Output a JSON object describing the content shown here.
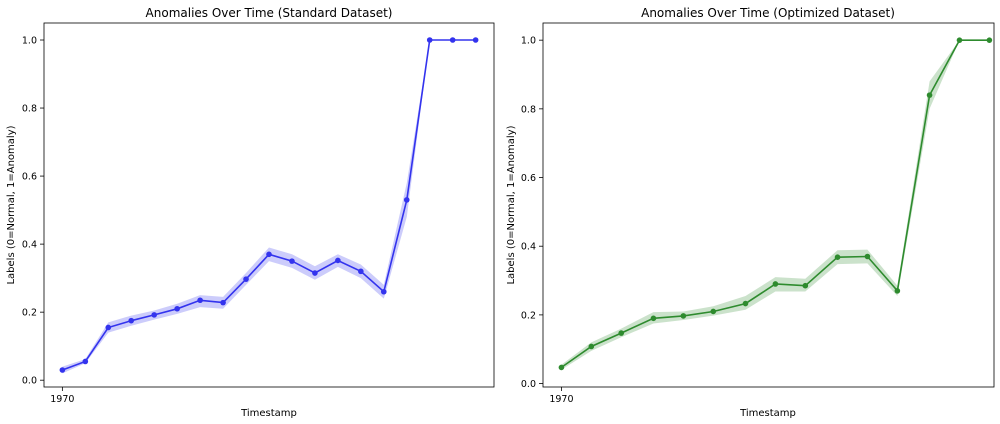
{
  "chart_data": [
    {
      "type": "line",
      "title": "Anomalies Over Time (Standard Dataset)",
      "xlabel": "Timestamp",
      "ylabel": "Labels (0=Normal, 1=Anomaly)",
      "x_tick_labels": [
        "1970"
      ],
      "y_ticks": [
        0.0,
        0.2,
        0.4,
        0.6,
        0.8,
        1.0
      ],
      "y_tick_labels": [
        "0.0",
        "0.2",
        "0.4",
        "0.6",
        "0.8",
        "1.0"
      ],
      "ylim": [
        -0.02,
        1.05
      ],
      "xlim": [
        -0.8,
        18.8
      ],
      "grid": false,
      "color": "#3333ee",
      "band": "confidence interval (shaded)",
      "series": [
        {
          "x": [
            0,
            1,
            2,
            3,
            4,
            5,
            6,
            7,
            8,
            9,
            10,
            11,
            12,
            13,
            14,
            15,
            16,
            17,
            18
          ],
          "values": [
            0.03,
            0.055,
            0.155,
            0.175,
            0.192,
            0.21,
            0.235,
            0.228,
            0.297,
            0.37,
            0.35,
            0.315,
            0.352,
            0.32,
            0.26,
            0.53,
            1.0,
            1.0,
            1.0
          ],
          "lower": [
            0.02,
            0.05,
            0.14,
            0.16,
            0.178,
            0.195,
            0.215,
            0.21,
            0.28,
            0.35,
            0.33,
            0.295,
            0.333,
            0.3,
            0.24,
            0.48,
            1.0,
            1.0,
            1.0
          ],
          "upper": [
            0.04,
            0.062,
            0.17,
            0.19,
            0.205,
            0.225,
            0.25,
            0.245,
            0.315,
            0.39,
            0.37,
            0.335,
            0.37,
            0.34,
            0.28,
            0.58,
            1.0,
            1.0,
            1.0
          ]
        }
      ]
    },
    {
      "type": "line",
      "title": "Anomalies Over Time (Optimized Dataset)",
      "xlabel": "Timestamp",
      "ylabel": "Labels (0=Normal, 1=Anomaly)",
      "x_tick_labels": [
        "1970"
      ],
      "y_ticks": [
        0.0,
        0.2,
        0.4,
        0.6,
        0.8,
        1.0
      ],
      "y_tick_labels": [
        "0.0",
        "0.2",
        "0.4",
        "0.6",
        "0.8",
        "1.0"
      ],
      "ylim": [
        -0.01,
        1.05
      ],
      "xlim": [
        -0.8,
        18.8
      ],
      "grid": false,
      "color": "#2e8b2e",
      "band": "confidence interval (shaded)",
      "series": [
        {
          "x": [
            0,
            1.3,
            2.6,
            4,
            5.3,
            6.6,
            8,
            9.3,
            10.6,
            12,
            13.3,
            14.6,
            16,
            17.3,
            18.6
          ],
          "values": [
            0.047,
            0.108,
            0.147,
            0.19,
            0.197,
            0.21,
            0.233,
            0.29,
            0.285,
            0.368,
            0.37,
            0.27,
            0.84,
            1.0,
            1.0
          ],
          "lower": [
            0.04,
            0.095,
            0.135,
            0.175,
            0.185,
            0.198,
            0.215,
            0.268,
            0.268,
            0.348,
            0.35,
            0.255,
            0.8,
            1.0,
            1.0
          ],
          "upper": [
            0.055,
            0.12,
            0.16,
            0.208,
            0.21,
            0.225,
            0.255,
            0.31,
            0.305,
            0.388,
            0.39,
            0.285,
            0.88,
            1.0,
            1.0
          ]
        }
      ]
    }
  ]
}
